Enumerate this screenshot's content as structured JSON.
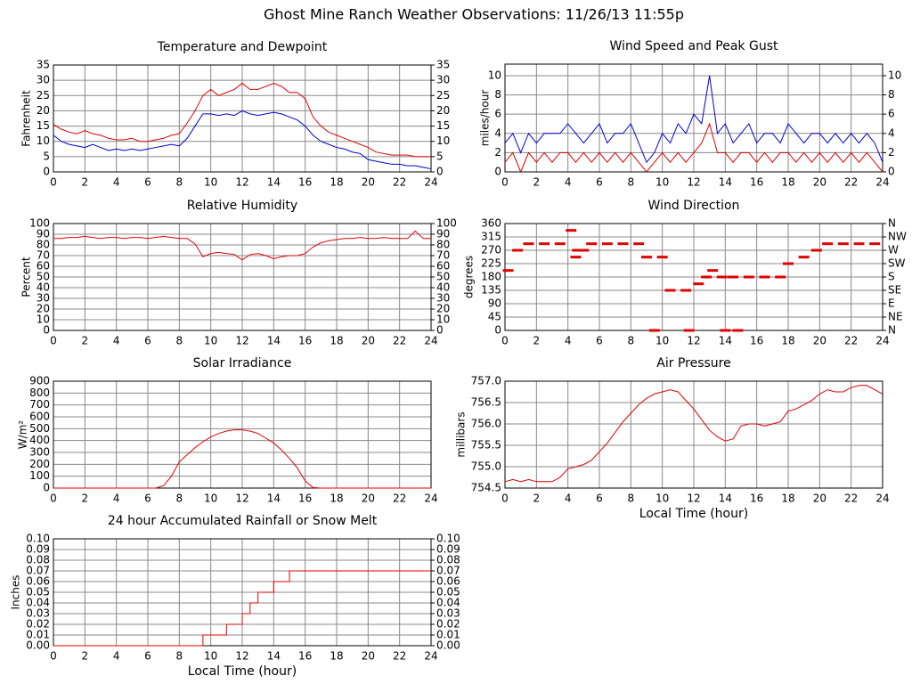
{
  "title": "Ghost Mine Ranch Weather Observations: 11/26/13 11:55p",
  "chart_data": [
    {
      "type": "line",
      "title": "Temperature and Dewpoint",
      "y_label": "Fahrenheit",
      "grid": true,
      "x": [
        0,
        0.5,
        1,
        1.5,
        2,
        2.5,
        3,
        3.5,
        4,
        4.5,
        5,
        5.5,
        6,
        6.5,
        7,
        7.5,
        8,
        8.5,
        9,
        9.5,
        10,
        10.5,
        11,
        11.5,
        12,
        12.5,
        13,
        13.5,
        14,
        14.5,
        15,
        15.5,
        16,
        16.5,
        17,
        17.5,
        18,
        18.5,
        19,
        19.5,
        20,
        20.5,
        21,
        21.5,
        22,
        22.5,
        23,
        23.5,
        24
      ],
      "xlim": [
        0,
        24
      ],
      "xticks": [
        0,
        2,
        4,
        6,
        8,
        10,
        12,
        14,
        16,
        18,
        20,
        22,
        24
      ],
      "ylim": [
        0,
        35
      ],
      "yticks": [
        0,
        5,
        10,
        15,
        20,
        25,
        30,
        35
      ],
      "y2lim": [
        0,
        35
      ],
      "y2ticks": [
        0,
        5,
        10,
        15,
        20,
        25,
        30,
        35
      ],
      "series": [
        {
          "color": "#e00000",
          "values": [
            15.5,
            14,
            13,
            12.5,
            13.5,
            12.5,
            12,
            11,
            10.5,
            10.5,
            11,
            10,
            10,
            10.5,
            11,
            12,
            12.5,
            16,
            20,
            25,
            27,
            25,
            26,
            27,
            29,
            27,
            27,
            28,
            29,
            28,
            26,
            26,
            24,
            18,
            15,
            13,
            12,
            11,
            10,
            9,
            8,
            6.5,
            6,
            5.5,
            5.5,
            5.5,
            5,
            5,
            5
          ]
        },
        {
          "color": "#0000d0",
          "values": [
            12,
            10,
            9,
            8.5,
            8,
            9,
            8,
            7,
            7.5,
            7,
            7.5,
            7,
            7.5,
            8,
            8.5,
            9,
            8.5,
            11,
            15,
            19,
            19,
            18.5,
            19,
            18.5,
            20,
            19,
            18.5,
            19,
            19.5,
            19,
            18,
            17,
            15,
            12,
            10,
            9,
            8,
            7.5,
            6.5,
            6,
            4,
            3.5,
            3,
            2.5,
            2.5,
            2,
            2,
            1.5,
            1
          ]
        }
      ]
    },
    {
      "type": "line",
      "title": "Wind Speed and Peak Gust",
      "y_label": "miles/hour",
      "grid": true,
      "x": [
        0,
        0.5,
        1,
        1.5,
        2,
        2.5,
        3,
        3.5,
        4,
        4.5,
        5,
        5.5,
        6,
        6.5,
        7,
        7.5,
        8,
        8.5,
        9,
        9.5,
        10,
        10.5,
        11,
        11.5,
        12,
        12.5,
        13,
        13.5,
        14,
        14.5,
        15,
        15.5,
        16,
        16.5,
        17,
        17.5,
        18,
        18.5,
        19,
        19.5,
        20,
        20.5,
        21,
        21.5,
        22,
        22.5,
        23,
        23.5,
        24
      ],
      "xlim": [
        0,
        24
      ],
      "xticks": [
        0,
        2,
        4,
        6,
        8,
        10,
        12,
        14,
        16,
        18,
        20,
        22,
        24
      ],
      "ylim": [
        0,
        11.2
      ],
      "yticks": [
        0,
        2,
        4,
        6,
        8,
        10
      ],
      "y2lim": [
        0,
        11.2
      ],
      "y2ticks": [
        0,
        2,
        4,
        6,
        8,
        10
      ],
      "series": [
        {
          "color": "#0000d0",
          "values": [
            3,
            4,
            2,
            4,
            3,
            4,
            4,
            4,
            5,
            4,
            3,
            4,
            5,
            3,
            4,
            4,
            5,
            3,
            1,
            2,
            4,
            3,
            5,
            4,
            6,
            5,
            10,
            4,
            5,
            3,
            4,
            5,
            3,
            4,
            4,
            3,
            5,
            4,
            3,
            4,
            4,
            3,
            4,
            3,
            4,
            3,
            4,
            3,
            1
          ]
        },
        {
          "color": "#e00000",
          "values": [
            1,
            2,
            0,
            2,
            1,
            2,
            1,
            2,
            2,
            1,
            2,
            1,
            2,
            1,
            2,
            1,
            2,
            1,
            0,
            1,
            2,
            1,
            2,
            1,
            2,
            3,
            5,
            2,
            2,
            1,
            2,
            2,
            1,
            2,
            1,
            2,
            2,
            1,
            2,
            1,
            2,
            1,
            2,
            1,
            2,
            1,
            2,
            1,
            0
          ]
        }
      ]
    },
    {
      "type": "line",
      "title": "Relative Humidity",
      "y_label": "Percent",
      "grid": true,
      "x": [
        0,
        0.5,
        1,
        1.5,
        2,
        2.5,
        3,
        3.5,
        4,
        4.5,
        5,
        5.5,
        6,
        6.5,
        7,
        7.5,
        8,
        8.5,
        9,
        9.5,
        10,
        10.5,
        11,
        11.5,
        12,
        12.5,
        13,
        13.5,
        14,
        14.5,
        15,
        15.5,
        16,
        16.5,
        17,
        17.5,
        18,
        18.5,
        19,
        19.5,
        20,
        20.5,
        21,
        21.5,
        22,
        22.5,
        23,
        23.5,
        24
      ],
      "xlim": [
        0,
        24
      ],
      "xticks": [
        0,
        2,
        4,
        6,
        8,
        10,
        12,
        14,
        16,
        18,
        20,
        22,
        24
      ],
      "ylim": [
        0,
        100
      ],
      "yticks": [
        0,
        10,
        20,
        30,
        40,
        50,
        60,
        70,
        80,
        90,
        100
      ],
      "y2lim": [
        0,
        100
      ],
      "y2ticks": [
        0,
        10,
        20,
        30,
        40,
        50,
        60,
        70,
        80,
        90,
        100
      ],
      "series": [
        {
          "color": "#e00000",
          "values": [
            86,
            86,
            87,
            87,
            88,
            87,
            86,
            87,
            87,
            86,
            87,
            87,
            86,
            87,
            88,
            87,
            86,
            86,
            81,
            69,
            72,
            73,
            72,
            71,
            66,
            71,
            72,
            70,
            67,
            69,
            70,
            70,
            72,
            78,
            82,
            84,
            85,
            86,
            86,
            87,
            86,
            86,
            87,
            86,
            86,
            86,
            93,
            86,
            86
          ]
        }
      ]
    },
    {
      "type": "scatter",
      "title": "Wind Direction",
      "y_label": "degrees",
      "grid": true,
      "x": [
        0.2,
        0.8,
        1.5,
        2.5,
        3.5,
        4.2,
        4.5,
        4.6,
        5,
        5.5,
        6.5,
        7.5,
        8.5,
        9,
        9.5,
        10,
        10.5,
        11.5,
        11.7,
        12.3,
        12.8,
        13.2,
        13.8,
        14,
        14.5,
        14.8,
        15.5,
        16.5,
        17.5,
        18,
        19,
        19.8,
        20.5,
        21.5,
        22.5,
        23.5
      ],
      "xlim": [
        0,
        24
      ],
      "xticks": [
        0,
        2,
        4,
        6,
        8,
        10,
        12,
        14,
        16,
        18,
        20,
        22,
        24
      ],
      "ylim": [
        0,
        360
      ],
      "yticks": [
        0,
        45,
        90,
        135,
        180,
        225,
        270,
        315,
        360
      ],
      "y2lim": [
        0,
        360
      ],
      "y2ticks": [
        {
          "value": 0,
          "label": "N"
        },
        {
          "value": 45,
          "label": "NE"
        },
        {
          "value": 90,
          "label": "E"
        },
        {
          "value": 135,
          "label": "SE"
        },
        {
          "value": 180,
          "label": "S"
        },
        {
          "value": 225,
          "label": "SW"
        },
        {
          "value": 270,
          "label": "W"
        },
        {
          "value": 315,
          "label": "NW"
        },
        {
          "value": 360,
          "label": "N"
        }
      ],
      "series": [
        {
          "color": "#e00000",
          "values": [
            202,
            270,
            292,
            292,
            292,
            337,
            247,
            270,
            270,
            292,
            292,
            292,
            292,
            247,
            0,
            247,
            135,
            135,
            0,
            157,
            180,
            202,
            180,
            0,
            180,
            0,
            180,
            180,
            180,
            225,
            247,
            270,
            292,
            292,
            292,
            292
          ]
        }
      ]
    },
    {
      "type": "line",
      "title": "Solar Irradiance",
      "y_label": "W/m²",
      "grid": true,
      "x": [
        0,
        0.5,
        1,
        1.5,
        2,
        2.5,
        3,
        3.5,
        4,
        4.5,
        5,
        5.5,
        6,
        6.5,
        7,
        7.5,
        8,
        8.5,
        9,
        9.5,
        10,
        10.5,
        11,
        11.5,
        12,
        12.5,
        13,
        13.5,
        14,
        14.5,
        15,
        15.5,
        16,
        16.5,
        17,
        17.5,
        18,
        18.5,
        19,
        19.5,
        20,
        20.5,
        21,
        21.5,
        22,
        22.5,
        23,
        23.5,
        24
      ],
      "xlim": [
        0,
        24
      ],
      "xticks": [
        0,
        2,
        4,
        6,
        8,
        10,
        12,
        14,
        16,
        18,
        20,
        22,
        24
      ],
      "ylim": [
        0,
        900
      ],
      "yticks": [
        0,
        100,
        200,
        300,
        400,
        500,
        600,
        700,
        800,
        900
      ],
      "series": [
        {
          "color": "#e00000",
          "values": [
            0,
            0,
            0,
            0,
            0,
            0,
            0,
            0,
            0,
            0,
            0,
            0,
            0,
            0,
            20,
            100,
            220,
            280,
            340,
            390,
            430,
            460,
            480,
            490,
            490,
            480,
            460,
            420,
            380,
            320,
            250,
            170,
            60,
            5,
            0,
            0,
            0,
            0,
            0,
            0,
            0,
            0,
            0,
            0,
            0,
            0,
            0,
            0,
            0
          ]
        }
      ]
    },
    {
      "type": "line",
      "title": "Air Pressure",
      "y_label": "millibars",
      "x_label": "Local Time (hour)",
      "grid": true,
      "x": [
        0,
        0.5,
        1,
        1.5,
        2,
        2.5,
        3,
        3.5,
        4,
        4.5,
        5,
        5.5,
        6,
        6.5,
        7,
        7.5,
        8,
        8.5,
        9,
        9.5,
        10,
        10.5,
        11,
        11.5,
        12,
        12.5,
        13,
        13.5,
        14,
        14.5,
        15,
        15.5,
        16,
        16.5,
        17,
        17.5,
        18,
        18.5,
        19,
        19.5,
        20,
        20.5,
        21,
        21.5,
        22,
        22.5,
        23,
        23.5,
        24
      ],
      "xlim": [
        0,
        24
      ],
      "xticks": [
        0,
        2,
        4,
        6,
        8,
        10,
        12,
        14,
        16,
        18,
        20,
        22,
        24
      ],
      "ylim": [
        754.5,
        757.0
      ],
      "yticks": [
        {
          "value": 754.5,
          "label": "754.5"
        },
        {
          "value": 755,
          "label": "755.0"
        },
        {
          "value": 755.5,
          "label": "755.5"
        },
        {
          "value": 756,
          "label": "756.0"
        },
        {
          "value": 756.5,
          "label": "756.5"
        },
        {
          "value": 757,
          "label": "757.0"
        }
      ],
      "series": [
        {
          "color": "#e00000",
          "values": [
            754.65,
            754.7,
            754.65,
            754.7,
            754.65,
            754.65,
            754.65,
            754.75,
            754.95,
            755.0,
            755.05,
            755.15,
            755.35,
            755.55,
            755.8,
            756.05,
            756.25,
            756.45,
            756.6,
            756.7,
            756.75,
            756.8,
            756.75,
            756.55,
            756.35,
            756.1,
            755.85,
            755.7,
            755.6,
            755.65,
            755.95,
            756.0,
            756.0,
            755.95,
            756.0,
            756.05,
            756.3,
            756.35,
            756.45,
            756.55,
            756.7,
            756.8,
            756.75,
            756.75,
            756.85,
            756.9,
            756.9,
            756.8,
            756.7
          ]
        }
      ]
    },
    {
      "type": "line",
      "title": "24 hour Accumulated Rainfall or Snow Melt",
      "y_label": "Inches",
      "x_label": "Local Time (hour)",
      "grid": true,
      "x": [
        0,
        9.5,
        9.5,
        11,
        11,
        12,
        12,
        12.5,
        12.5,
        13,
        13,
        14,
        14,
        15,
        15,
        24
      ],
      "xlim": [
        0,
        24
      ],
      "xticks": [
        0,
        2,
        4,
        6,
        8,
        10,
        12,
        14,
        16,
        18,
        20,
        22,
        24
      ],
      "ylim": [
        0,
        0.1
      ],
      "yticks": [
        {
          "value": 0,
          "label": "0.00"
        },
        0.01,
        0.02,
        0.03,
        0.04,
        0.05,
        0.06,
        0.07,
        0.08,
        0.09,
        {
          "value": 0.1,
          "label": "0.10"
        }
      ],
      "y2lim": [
        0,
        0.1
      ],
      "y2ticks": [
        {
          "value": 0,
          "label": "0.00"
        },
        0.01,
        0.02,
        0.03,
        0.04,
        0.05,
        0.06,
        0.07,
        0.08,
        0.09,
        {
          "value": 0.1,
          "label": "0.10"
        }
      ],
      "series": [
        {
          "color": "#e00000",
          "values": [
            0,
            0,
            0.01,
            0.01,
            0.02,
            0.02,
            0.03,
            0.03,
            0.04,
            0.04,
            0.05,
            0.05,
            0.06,
            0.06,
            0.07,
            0.07
          ]
        }
      ]
    }
  ]
}
